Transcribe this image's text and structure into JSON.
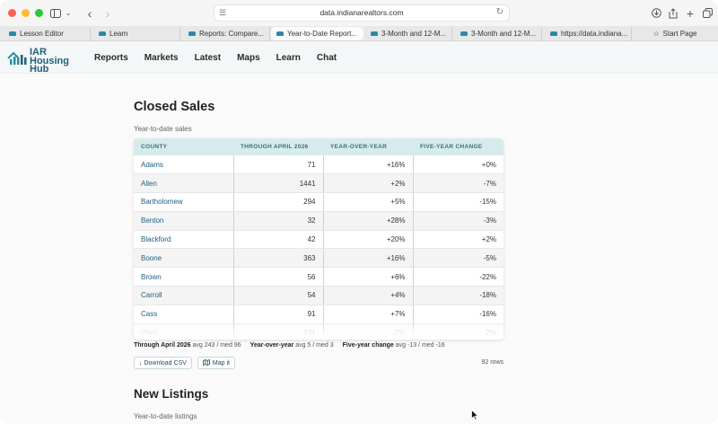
{
  "browser": {
    "url": "data.indianarealtors.com",
    "tabs": [
      {
        "label": "Lesson Editor"
      },
      {
        "label": "Learn"
      },
      {
        "label": "Reports: Compare..."
      },
      {
        "label": "Year-to-Date Report..."
      },
      {
        "label": "3-Month and 12-M..."
      },
      {
        "label": "3-Month and 12-M..."
      },
      {
        "label": "https://data.indiana..."
      },
      {
        "label": "Start Page"
      }
    ]
  },
  "site": {
    "logo_line1": "IAR",
    "logo_line2": "Housing Hub",
    "nav": [
      "Reports",
      "Markets",
      "Latest",
      "Maps",
      "Learn",
      "Chat"
    ]
  },
  "closed_sales": {
    "title": "Closed Sales",
    "subtitle": "Year-to-date sales",
    "columns": [
      "COUNTY",
      "THROUGH APRIL 2026",
      "YEAR-OVER-YEAR",
      "FIVE-YEAR CHANGE"
    ],
    "rows": [
      [
        "Adams",
        "71",
        "+16%",
        "+0%"
      ],
      [
        "Allen",
        "1441",
        "+2%",
        "-7%"
      ],
      [
        "Bartholomew",
        "294",
        "+5%",
        "-15%"
      ],
      [
        "Benton",
        "32",
        "+28%",
        "-3%"
      ],
      [
        "Blackford",
        "42",
        "+20%",
        "+2%"
      ],
      [
        "Boone",
        "363",
        "+16%",
        "-5%"
      ],
      [
        "Brown",
        "56",
        "+6%",
        "-22%"
      ],
      [
        "Carroll",
        "54",
        "+4%",
        "-18%"
      ],
      [
        "Cass",
        "91",
        "+7%",
        "-16%"
      ],
      [
        "Clark",
        "631",
        "-2%",
        "-2%"
      ]
    ],
    "stats": {
      "s1_label": "Through April 2026",
      "s1_value": "avg 243 / med 96",
      "s2_label": "Year-over-year",
      "s2_value": "avg 5 / med 3",
      "s3_label": "Five-year change",
      "s3_value": "avg -13 / med -16"
    },
    "download_label": "↓ Download CSV",
    "map_label": "Map it",
    "row_count": "92 rows"
  },
  "new_listings": {
    "title": "New Listings",
    "subtitle": "Year-to-date listings"
  }
}
